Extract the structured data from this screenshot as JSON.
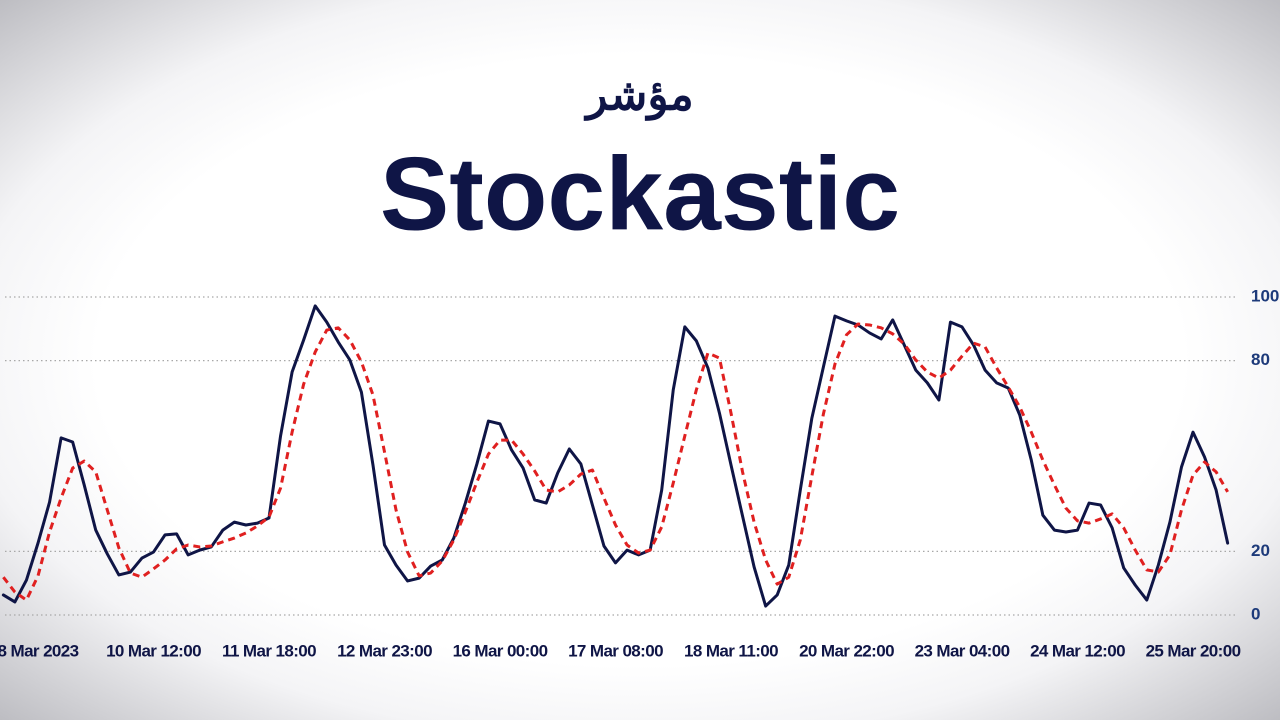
{
  "chart_data": {
    "type": "line",
    "subtitle": "مؤشر",
    "title": "Stockastic",
    "categories": [
      null,
      null,
      null,
      "8 Mar 2023",
      null,
      null,
      null,
      null,
      null,
      null,
      null,
      null,
      null,
      "10 Mar 12:00",
      null,
      null,
      null,
      null,
      null,
      null,
      null,
      null,
      null,
      "11 Mar 18:00",
      null,
      null,
      null,
      null,
      null,
      null,
      null,
      null,
      null,
      "12 Mar 23:00",
      null,
      null,
      null,
      null,
      null,
      null,
      null,
      null,
      null,
      "16 Mar 00:00",
      null,
      null,
      null,
      null,
      null,
      null,
      null,
      null,
      null,
      "17 Mar 08:00",
      null,
      null,
      null,
      null,
      null,
      null,
      null,
      null,
      null,
      "18 Mar 11:00",
      null,
      null,
      null,
      null,
      null,
      null,
      null,
      null,
      null,
      "20 Mar 22:00",
      null,
      null,
      null,
      null,
      null,
      null,
      null,
      null,
      null,
      "23 Mar 04:00",
      null,
      null,
      null,
      null,
      null,
      null,
      null,
      null,
      null,
      "24 Mar 12:00",
      null,
      null,
      null,
      null,
      null,
      null,
      null,
      null,
      null,
      "25 Mar 20:00",
      null,
      null,
      null
    ],
    "series": [
      {
        "color": "#0f1546",
        "dashed": false,
        "values": [
          6.3,
          4.1,
          11,
          22.6,
          35.5,
          55.7,
          54.4,
          40.9,
          26.7,
          19.2,
          12.6,
          13.5,
          17.9,
          19.8,
          25.2,
          25.5,
          18.9,
          20.4,
          21.4,
          26.7,
          29.2,
          28.3,
          28.9,
          30.5,
          56.3,
          76.4,
          86.5,
          97.2,
          92.1,
          85.8,
          80.2,
          70.1,
          47.2,
          22.0,
          15.7,
          10.7,
          11.6,
          15.4,
          17.3,
          24.2,
          35.2,
          47.5,
          61.0,
          60.1,
          51.9,
          46.2,
          36.2,
          35.2,
          44.7,
          52.2,
          47.5,
          34.6,
          21.7,
          16.4,
          20.4,
          18.9,
          20.4,
          39.3,
          70.8,
          90.6,
          86.2,
          77.7,
          63.5,
          47.2,
          31.1,
          15.1,
          2.8,
          6.3,
          15.7,
          39.3,
          61.9,
          78.0,
          94.0,
          92.5,
          91.2,
          88.7,
          86.8,
          92.8,
          84.9,
          77.0,
          73.0,
          67.6,
          92.1,
          90.6,
          84.9,
          77.0,
          73.0,
          71.4,
          62.9,
          48.7,
          31.4,
          26.7,
          26.1,
          26.7,
          35.2,
          34.6,
          27.4,
          14.8,
          9.4,
          4.7,
          15.7,
          29.2,
          46.5,
          57.5,
          49.7,
          39.3,
          22.6
        ]
      },
      {
        "color": "#e02020",
        "dashed": true,
        "values": [
          11.9,
          7.2,
          4.7,
          12.3,
          26.1,
          36.8,
          46.2,
          48.4,
          45.0,
          33.0,
          21.1,
          13.2,
          11.9,
          14.5,
          17.3,
          20.8,
          22.0,
          21.4,
          21.7,
          23.0,
          24.2,
          25.8,
          28.0,
          30.8,
          39.9,
          57.5,
          72.6,
          82.7,
          89.6,
          90.3,
          86.5,
          79.6,
          69.2,
          51.3,
          33.0,
          19.8,
          12.3,
          13.2,
          17.0,
          23.6,
          32.4,
          41.8,
          50.6,
          55.0,
          55.0,
          50.6,
          45.3,
          39.3,
          38.7,
          40.9,
          44.3,
          45.6,
          36.8,
          28.3,
          22.0,
          19.5,
          20.4,
          27.7,
          41.5,
          56.3,
          70.8,
          82.4,
          80.8,
          63.5,
          45.0,
          29.2,
          17.3,
          9.7,
          11.9,
          23.6,
          43.7,
          63.2,
          78.9,
          88.1,
          91.5,
          91.2,
          90.3,
          88.4,
          85.2,
          80.2,
          76.4,
          74.5,
          77.0,
          81.4,
          85.5,
          84.3,
          77.7,
          71.7,
          65.4,
          57.5,
          48.7,
          40.9,
          33.6,
          29.6,
          28.9,
          30.2,
          31.8,
          27.4,
          20.4,
          14.2,
          13.5,
          18.9,
          33.0,
          44.0,
          48.1,
          45.0,
          38.7
        ]
      }
    ],
    "ylim": [
      0,
      100
    ],
    "yticks": [
      0,
      20,
      80,
      100
    ],
    "grid": true
  }
}
